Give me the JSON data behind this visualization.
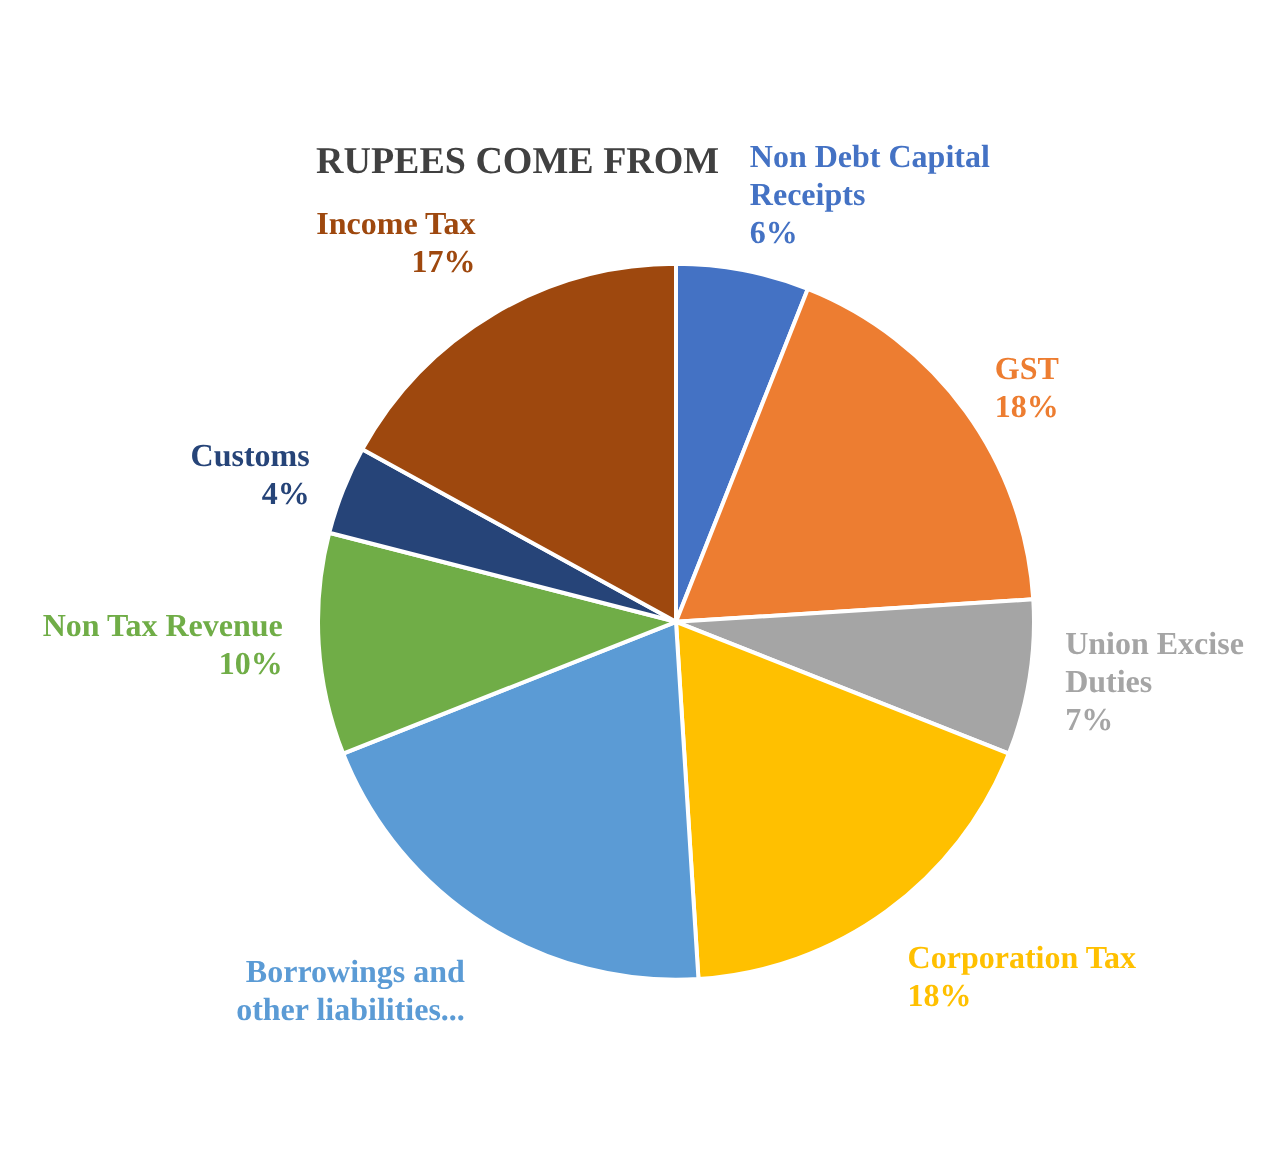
{
  "chart_data": {
    "type": "pie",
    "title": "RUPEES COME FROM",
    "categories": [
      "Non Debt Capital Receipts",
      "GST",
      "Union Excise Duties",
      "Corporation Tax",
      "Borrowings and other liabilities...",
      "Non Tax Revenue",
      "Customs",
      "Income Tax"
    ],
    "values": [
      6,
      18,
      7,
      18,
      20,
      10,
      4,
      17
    ],
    "value_labels": [
      "6%",
      "18%",
      "7%",
      "18%",
      null,
      "10%",
      "4%",
      "17%"
    ],
    "colors": [
      "#4472c4",
      "#ed7d31",
      "#a5a5a5",
      "#ffc000",
      "#5b9bd5",
      "#70ad47",
      "#264478",
      "#9e480e"
    ],
    "legend": false
  }
}
